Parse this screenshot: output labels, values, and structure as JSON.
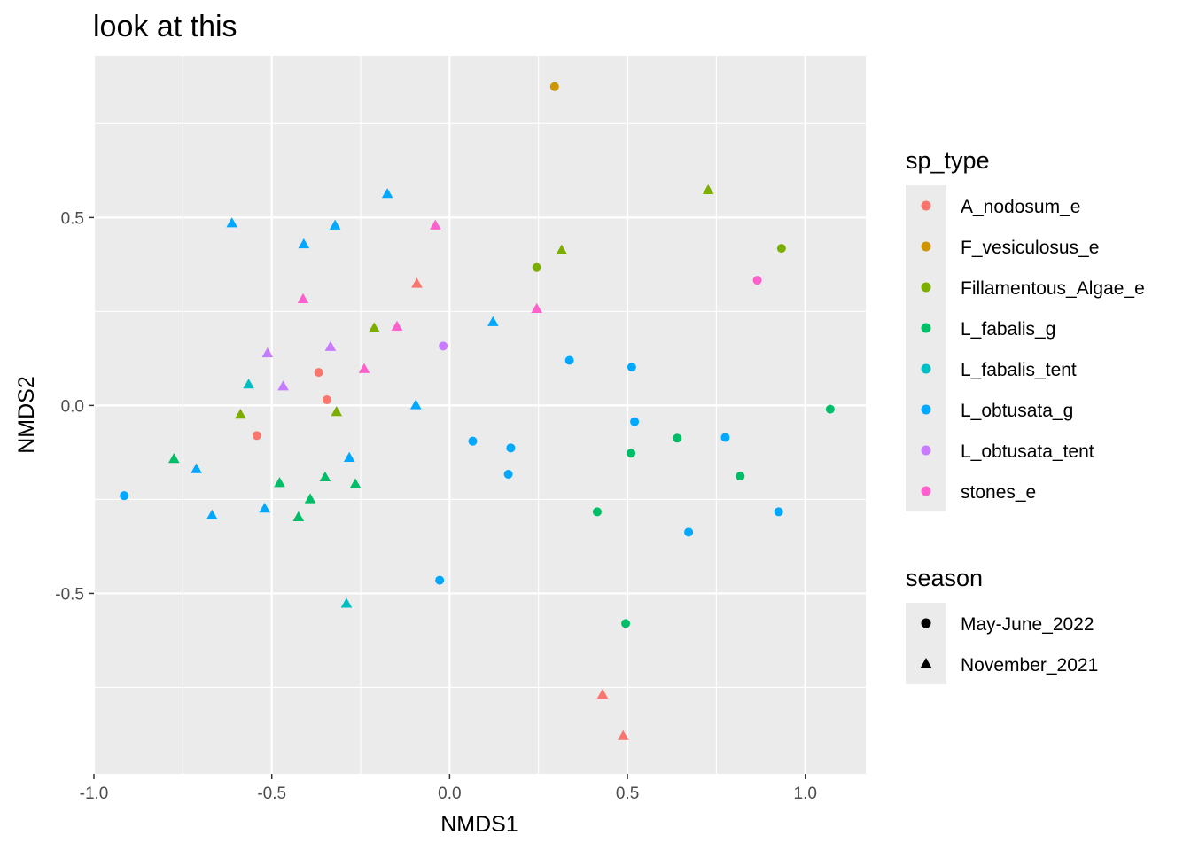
{
  "chart_data": {
    "type": "scatter",
    "title": "look at this",
    "xlabel": "NMDS1",
    "ylabel": "NMDS2",
    "xlim": [
      -1.0,
      1.17
    ],
    "ylim": [
      -0.98,
      0.93
    ],
    "x_ticks": [
      -1.0,
      -0.5,
      0.0,
      0.5,
      1.0
    ],
    "x_tick_labels": [
      "-1.0",
      "-0.5",
      "0.0",
      "0.5",
      "1.0"
    ],
    "y_ticks": [
      -0.5,
      0.0,
      0.5
    ],
    "y_tick_labels": [
      "-0.5",
      "0.0",
      "0.5"
    ],
    "grid": true,
    "legend_placement": "right",
    "color_legend": {
      "title": "sp_type",
      "entries": [
        {
          "label": "A_nodosum_e",
          "color": "#F8766D"
        },
        {
          "label": "F_vesiculosus_e",
          "color": "#CD9600"
        },
        {
          "label": "Fillamentous_Algae_e",
          "color": "#7CAE00"
        },
        {
          "label": "L_fabalis_g",
          "color": "#00BE67"
        },
        {
          "label": "L_fabalis_tent",
          "color": "#00BFC4"
        },
        {
          "label": "L_obtusata_g",
          "color": "#00A9FF"
        },
        {
          "label": "L_obtusata_tent",
          "color": "#C77CFF"
        },
        {
          "label": "stones_e",
          "color": "#FF61CC"
        }
      ]
    },
    "shape_legend": {
      "title": "season",
      "entries": [
        {
          "label": "May-June_2022",
          "shape": "circle"
        },
        {
          "label": "November_2021",
          "shape": "triangle"
        }
      ]
    },
    "points": [
      {
        "x": 0.295,
        "y": 0.848,
        "sp_type": "F_vesiculosus_e",
        "season": "May-June_2022"
      },
      {
        "x": -0.175,
        "y": 0.562,
        "sp_type": "L_obtusata_g",
        "season": "November_2021"
      },
      {
        "x": 0.727,
        "y": 0.572,
        "sp_type": "Fillamentous_Algae_e",
        "season": "November_2021"
      },
      {
        "x": -0.612,
        "y": 0.484,
        "sp_type": "L_obtusata_g",
        "season": "November_2021"
      },
      {
        "x": -0.322,
        "y": 0.478,
        "sp_type": "L_obtusata_g",
        "season": "November_2021"
      },
      {
        "x": -0.04,
        "y": 0.478,
        "sp_type": "stones_e",
        "season": "November_2021"
      },
      {
        "x": -0.41,
        "y": 0.428,
        "sp_type": "L_obtusata_g",
        "season": "November_2021"
      },
      {
        "x": 0.933,
        "y": 0.418,
        "sp_type": "Fillamentous_Algae_e",
        "season": "May-June_2022"
      },
      {
        "x": 0.315,
        "y": 0.412,
        "sp_type": "Fillamentous_Algae_e",
        "season": "November_2021"
      },
      {
        "x": 0.245,
        "y": 0.367,
        "sp_type": "Fillamentous_Algae_e",
        "season": "May-June_2022"
      },
      {
        "x": 0.865,
        "y": 0.333,
        "sp_type": "stones_e",
        "season": "May-June_2022"
      },
      {
        "x": -0.092,
        "y": 0.323,
        "sp_type": "A_nodosum_e",
        "season": "November_2021"
      },
      {
        "x": -0.412,
        "y": 0.282,
        "sp_type": "stones_e",
        "season": "November_2021"
      },
      {
        "x": 0.245,
        "y": 0.256,
        "sp_type": "stones_e",
        "season": "November_2021"
      },
      {
        "x": 0.122,
        "y": 0.221,
        "sp_type": "L_obtusata_g",
        "season": "November_2021"
      },
      {
        "x": -0.148,
        "y": 0.209,
        "sp_type": "stones_e",
        "season": "November_2021"
      },
      {
        "x": -0.212,
        "y": 0.205,
        "sp_type": "Fillamentous_Algae_e",
        "season": "November_2021"
      },
      {
        "x": -0.018,
        "y": 0.158,
        "sp_type": "L_obtusata_tent",
        "season": "May-June_2022"
      },
      {
        "x": -0.335,
        "y": 0.155,
        "sp_type": "L_obtusata_tent",
        "season": "November_2021"
      },
      {
        "x": -0.512,
        "y": 0.138,
        "sp_type": "L_obtusata_tent",
        "season": "November_2021"
      },
      {
        "x": 0.337,
        "y": 0.12,
        "sp_type": "L_obtusata_g",
        "season": "May-June_2022"
      },
      {
        "x": 0.512,
        "y": 0.102,
        "sp_type": "L_obtusata_g",
        "season": "May-June_2022"
      },
      {
        "x": -0.24,
        "y": 0.096,
        "sp_type": "stones_e",
        "season": "November_2021"
      },
      {
        "x": -0.368,
        "y": 0.088,
        "sp_type": "A_nodosum_e",
        "season": "May-June_2022"
      },
      {
        "x": -0.565,
        "y": 0.055,
        "sp_type": "L_fabalis_tent",
        "season": "November_2021"
      },
      {
        "x": -0.468,
        "y": 0.05,
        "sp_type": "L_obtusata_tent",
        "season": "November_2021"
      },
      {
        "x": -0.345,
        "y": 0.015,
        "sp_type": "A_nodosum_e",
        "season": "May-June_2022"
      },
      {
        "x": -0.095,
        "y": 0.0,
        "sp_type": "L_obtusata_g",
        "season": "November_2021"
      },
      {
        "x": 1.07,
        "y": -0.01,
        "sp_type": "L_fabalis_g",
        "season": "May-June_2022"
      },
      {
        "x": -0.318,
        "y": -0.018,
        "sp_type": "Fillamentous_Algae_e",
        "season": "November_2021"
      },
      {
        "x": -0.588,
        "y": -0.025,
        "sp_type": "Fillamentous_Algae_e",
        "season": "November_2021"
      },
      {
        "x": 0.52,
        "y": -0.043,
        "sp_type": "L_obtusata_g",
        "season": "May-June_2022"
      },
      {
        "x": -0.542,
        "y": -0.08,
        "sp_type": "A_nodosum_e",
        "season": "May-June_2022"
      },
      {
        "x": 0.64,
        "y": -0.087,
        "sp_type": "L_fabalis_g",
        "season": "May-June_2022"
      },
      {
        "x": 0.775,
        "y": -0.085,
        "sp_type": "L_obtusata_g",
        "season": "May-June_2022"
      },
      {
        "x": 0.065,
        "y": -0.095,
        "sp_type": "L_obtusata_g",
        "season": "May-June_2022"
      },
      {
        "x": 0.172,
        "y": -0.113,
        "sp_type": "L_obtusata_g",
        "season": "May-June_2022"
      },
      {
        "x": 0.51,
        "y": -0.127,
        "sp_type": "L_fabalis_g",
        "season": "May-June_2022"
      },
      {
        "x": -0.282,
        "y": -0.14,
        "sp_type": "L_obtusata_g",
        "season": "November_2021"
      },
      {
        "x": -0.775,
        "y": -0.143,
        "sp_type": "L_fabalis_g",
        "season": "November_2021"
      },
      {
        "x": -0.712,
        "y": -0.17,
        "sp_type": "L_obtusata_g",
        "season": "November_2021"
      },
      {
        "x": 0.165,
        "y": -0.183,
        "sp_type": "L_obtusata_g",
        "season": "May-June_2022"
      },
      {
        "x": 0.817,
        "y": -0.188,
        "sp_type": "L_fabalis_g",
        "season": "May-June_2022"
      },
      {
        "x": -0.35,
        "y": -0.192,
        "sp_type": "L_fabalis_g",
        "season": "November_2021"
      },
      {
        "x": -0.478,
        "y": -0.207,
        "sp_type": "L_fabalis_g",
        "season": "November_2021"
      },
      {
        "x": -0.265,
        "y": -0.21,
        "sp_type": "L_fabalis_g",
        "season": "November_2021"
      },
      {
        "x": -0.915,
        "y": -0.24,
        "sp_type": "L_obtusata_g",
        "season": "May-June_2022"
      },
      {
        "x": -0.392,
        "y": -0.25,
        "sp_type": "L_fabalis_g",
        "season": "November_2021"
      },
      {
        "x": -0.52,
        "y": -0.275,
        "sp_type": "L_obtusata_g",
        "season": "November_2021"
      },
      {
        "x": 0.415,
        "y": -0.283,
        "sp_type": "L_fabalis_g",
        "season": "May-June_2022"
      },
      {
        "x": 0.925,
        "y": -0.283,
        "sp_type": "L_obtusata_g",
        "season": "May-June_2022"
      },
      {
        "x": -0.668,
        "y": -0.293,
        "sp_type": "L_obtusata_g",
        "season": "November_2021"
      },
      {
        "x": -0.425,
        "y": -0.298,
        "sp_type": "L_fabalis_g",
        "season": "November_2021"
      },
      {
        "x": 0.672,
        "y": -0.337,
        "sp_type": "L_obtusata_g",
        "season": "May-June_2022"
      },
      {
        "x": -0.028,
        "y": -0.465,
        "sp_type": "L_obtusata_g",
        "season": "May-June_2022"
      },
      {
        "x": -0.29,
        "y": -0.528,
        "sp_type": "L_fabalis_tent",
        "season": "November_2021"
      },
      {
        "x": 0.495,
        "y": -0.58,
        "sp_type": "L_fabalis_g",
        "season": "May-June_2022"
      },
      {
        "x": 0.43,
        "y": -0.77,
        "sp_type": "A_nodosum_e",
        "season": "November_2021"
      },
      {
        "x": 0.488,
        "y": -0.88,
        "sp_type": "A_nodosum_e",
        "season": "November_2021"
      }
    ]
  }
}
